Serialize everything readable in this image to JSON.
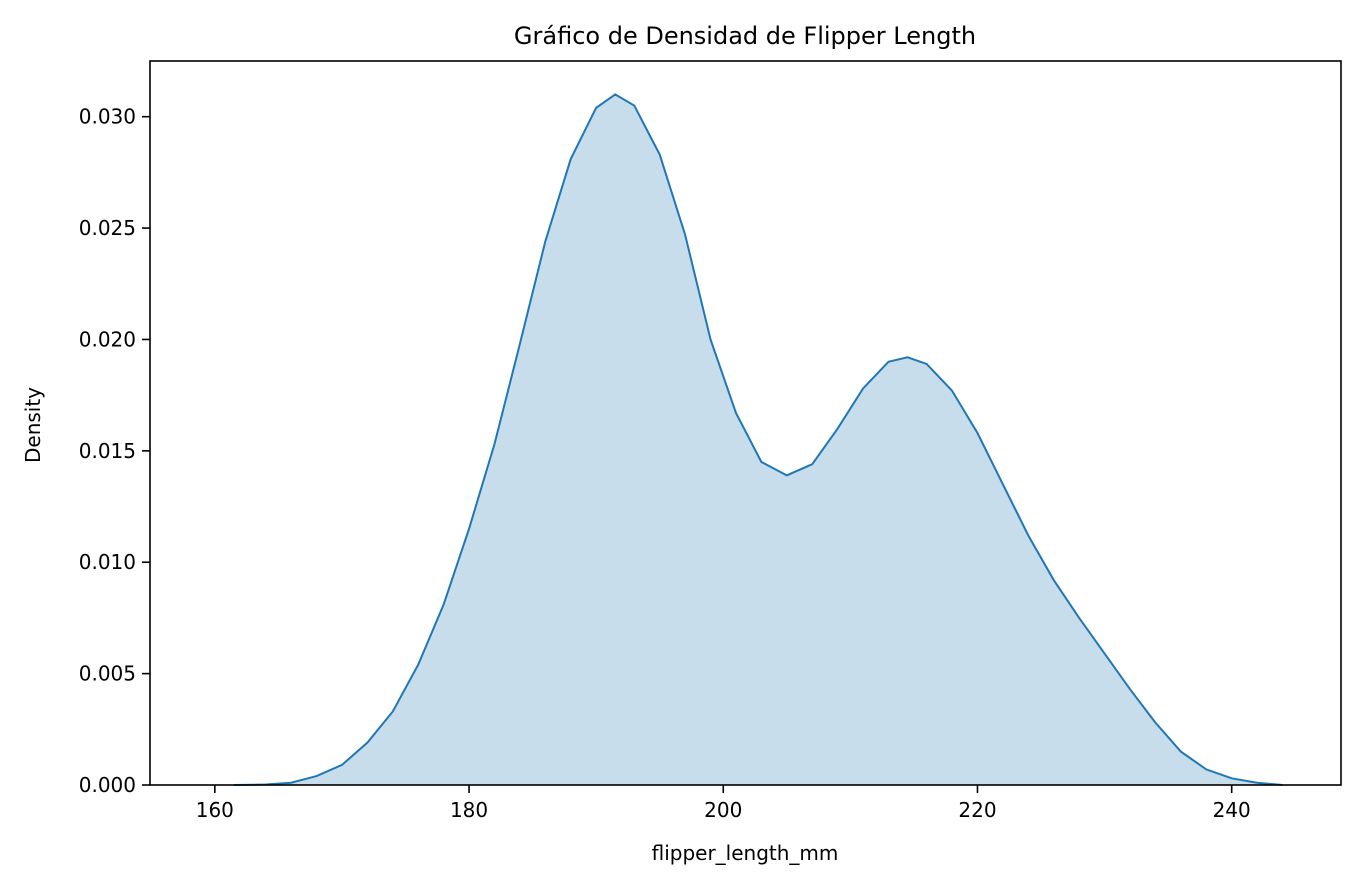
{
  "chart_data": {
    "type": "area",
    "title": "Gráfico de Densidad de Flipper Length",
    "xlabel": "flipper_length_mm",
    "ylabel": "Density",
    "xlim": [
      154.9,
      248.6
    ],
    "ylim": [
      0.0,
      0.0325
    ],
    "xticks": [
      160,
      180,
      200,
      220,
      240
    ],
    "xtick_labels": [
      "160",
      "180",
      "200",
      "220",
      "240"
    ],
    "yticks": [
      0.0,
      0.005,
      0.01,
      0.015,
      0.02,
      0.025,
      0.03
    ],
    "ytick_labels": [
      "0.000",
      "0.005",
      "0.010",
      "0.015",
      "0.020",
      "0.025",
      "0.030"
    ],
    "grid": false,
    "legend": false,
    "series": [
      {
        "color": "#1f77b4",
        "fill_color": "#1f77b4",
        "fill_opacity": 0.25,
        "points": [
          [
            161.5,
            0.0
          ],
          [
            164,
            2e-05
          ],
          [
            166,
            0.0001
          ],
          [
            168,
            0.0004
          ],
          [
            170,
            0.0009
          ],
          [
            172,
            0.0019
          ],
          [
            174,
            0.0033
          ],
          [
            176,
            0.0054
          ],
          [
            178,
            0.0081
          ],
          [
            180,
            0.0115
          ],
          [
            182,
            0.0153
          ],
          [
            184,
            0.0198
          ],
          [
            186,
            0.0244
          ],
          [
            188,
            0.0281
          ],
          [
            190,
            0.0304
          ],
          [
            191.5,
            0.031
          ],
          [
            193,
            0.0305
          ],
          [
            195,
            0.0283
          ],
          [
            197,
            0.0247
          ],
          [
            199,
            0.02
          ],
          [
            201,
            0.0167
          ],
          [
            203,
            0.0145
          ],
          [
            205,
            0.0139
          ],
          [
            207,
            0.0144
          ],
          [
            209,
            0.016
          ],
          [
            211,
            0.0178
          ],
          [
            213,
            0.019
          ],
          [
            214.5,
            0.0192
          ],
          [
            216,
            0.0189
          ],
          [
            218,
            0.0177
          ],
          [
            220,
            0.0158
          ],
          [
            222,
            0.0135
          ],
          [
            224,
            0.0112
          ],
          [
            226,
            0.0092
          ],
          [
            228,
            0.0075
          ],
          [
            230,
            0.0059
          ],
          [
            232,
            0.0043
          ],
          [
            234,
            0.0028
          ],
          [
            236,
            0.0015
          ],
          [
            238,
            0.0007
          ],
          [
            240,
            0.0003
          ],
          [
            242,
            0.0001
          ],
          [
            244,
            0.0
          ]
        ]
      }
    ]
  }
}
